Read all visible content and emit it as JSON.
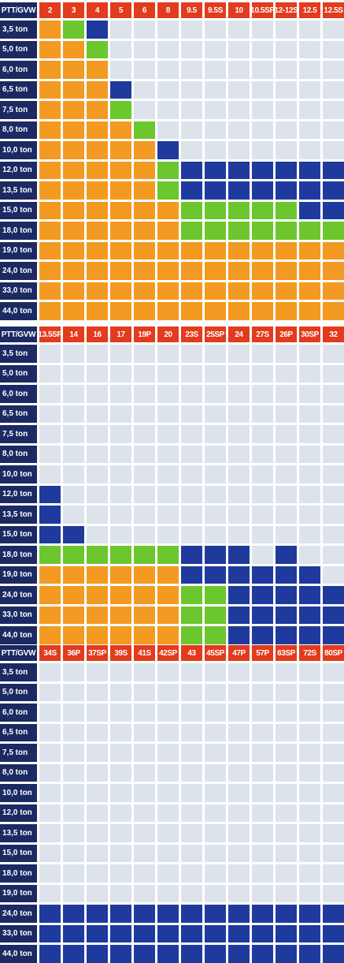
{
  "corner_label": "PTT/GVW",
  "colors": {
    "O": "#f39a22",
    "G": "#6cc62e",
    "B": "#1f3a9d",
    "E": "#dde3ea",
    "row_header_bg": "#1b2a63",
    "col_header_bg": "#e23b1d"
  },
  "rows": [
    "3,5 ton",
    "5,0 ton",
    "6,0 ton",
    "6,5 ton",
    "7,5 ton",
    "8,0 ton",
    "10,0 ton",
    "12,0 ton",
    "13,5 ton",
    "15,0 ton",
    "18,0 ton",
    "19,0 ton",
    "24,0 ton",
    "33,0 ton",
    "44,0 ton"
  ],
  "tables": [
    {
      "columns": [
        "2",
        "3",
        "4",
        "5",
        "6",
        "8",
        "9.5",
        "9.5S",
        "10",
        "10.5SP",
        "12-12S",
        "12.5",
        "12.5S"
      ],
      "cells": [
        [
          "O",
          "G",
          "B",
          "E",
          "E",
          "E",
          "E",
          "E",
          "E",
          "E",
          "E",
          "E",
          "E"
        ],
        [
          "O",
          "O",
          "G",
          "E",
          "E",
          "E",
          "E",
          "E",
          "E",
          "E",
          "E",
          "E",
          "E"
        ],
        [
          "O",
          "O",
          "O",
          "E",
          "E",
          "E",
          "E",
          "E",
          "E",
          "E",
          "E",
          "E",
          "E"
        ],
        [
          "O",
          "O",
          "O",
          "B",
          "E",
          "E",
          "E",
          "E",
          "E",
          "E",
          "E",
          "E",
          "E"
        ],
        [
          "O",
          "O",
          "O",
          "G",
          "E",
          "E",
          "E",
          "E",
          "E",
          "E",
          "E",
          "E",
          "E"
        ],
        [
          "O",
          "O",
          "O",
          "O",
          "G",
          "E",
          "E",
          "E",
          "E",
          "E",
          "E",
          "E",
          "E"
        ],
        [
          "O",
          "O",
          "O",
          "O",
          "O",
          "B",
          "E",
          "E",
          "E",
          "E",
          "E",
          "E",
          "E"
        ],
        [
          "O",
          "O",
          "O",
          "O",
          "O",
          "G",
          "B",
          "B",
          "B",
          "B",
          "B",
          "B",
          "B"
        ],
        [
          "O",
          "O",
          "O",
          "O",
          "O",
          "G",
          "B",
          "B",
          "B",
          "B",
          "B",
          "B",
          "B"
        ],
        [
          "O",
          "O",
          "O",
          "O",
          "O",
          "O",
          "G",
          "G",
          "G",
          "G",
          "G",
          "B",
          "B"
        ],
        [
          "O",
          "O",
          "O",
          "O",
          "O",
          "O",
          "G",
          "G",
          "G",
          "G",
          "G",
          "G",
          "G"
        ],
        [
          "O",
          "O",
          "O",
          "O",
          "O",
          "O",
          "O",
          "O",
          "O",
          "O",
          "O",
          "O",
          "O"
        ],
        [
          "O",
          "O",
          "O",
          "O",
          "O",
          "O",
          "O",
          "O",
          "O",
          "O",
          "O",
          "O",
          "O"
        ],
        [
          "O",
          "O",
          "O",
          "O",
          "O",
          "O",
          "O",
          "O",
          "O",
          "O",
          "O",
          "O",
          "O"
        ],
        [
          "O",
          "O",
          "O",
          "O",
          "O",
          "O",
          "O",
          "O",
          "O",
          "O",
          "O",
          "O",
          "O"
        ]
      ]
    },
    {
      "columns": [
        "13.5SP",
        "14",
        "16",
        "17",
        "19P",
        "20",
        "23S",
        "25SP",
        "24",
        "27S",
        "26P",
        "30SP",
        "32"
      ],
      "cells": [
        [
          "E",
          "E",
          "E",
          "E",
          "E",
          "E",
          "E",
          "E",
          "E",
          "E",
          "E",
          "E",
          "E"
        ],
        [
          "E",
          "E",
          "E",
          "E",
          "E",
          "E",
          "E",
          "E",
          "E",
          "E",
          "E",
          "E",
          "E"
        ],
        [
          "E",
          "E",
          "E",
          "E",
          "E",
          "E",
          "E",
          "E",
          "E",
          "E",
          "E",
          "E",
          "E"
        ],
        [
          "E",
          "E",
          "E",
          "E",
          "E",
          "E",
          "E",
          "E",
          "E",
          "E",
          "E",
          "E",
          "E"
        ],
        [
          "E",
          "E",
          "E",
          "E",
          "E",
          "E",
          "E",
          "E",
          "E",
          "E",
          "E",
          "E",
          "E"
        ],
        [
          "E",
          "E",
          "E",
          "E",
          "E",
          "E",
          "E",
          "E",
          "E",
          "E",
          "E",
          "E",
          "E"
        ],
        [
          "E",
          "E",
          "E",
          "E",
          "E",
          "E",
          "E",
          "E",
          "E",
          "E",
          "E",
          "E",
          "E"
        ],
        [
          "B",
          "E",
          "E",
          "E",
          "E",
          "E",
          "E",
          "E",
          "E",
          "E",
          "E",
          "E",
          "E"
        ],
        [
          "B",
          "E",
          "E",
          "E",
          "E",
          "E",
          "E",
          "E",
          "E",
          "E",
          "E",
          "E",
          "E"
        ],
        [
          "B",
          "B",
          "E",
          "E",
          "E",
          "E",
          "E",
          "E",
          "E",
          "E",
          "E",
          "E",
          "E"
        ],
        [
          "G",
          "G",
          "G",
          "G",
          "G",
          "G",
          "B",
          "B",
          "B",
          "E",
          "B",
          "E",
          "E"
        ],
        [
          "O",
          "O",
          "O",
          "O",
          "O",
          "O",
          "B",
          "B",
          "B",
          "B",
          "B",
          "B",
          "E"
        ],
        [
          "O",
          "O",
          "O",
          "O",
          "O",
          "O",
          "G",
          "G",
          "B",
          "B",
          "B",
          "B",
          "B"
        ],
        [
          "O",
          "O",
          "O",
          "O",
          "O",
          "O",
          "G",
          "G",
          "B",
          "B",
          "B",
          "B",
          "B"
        ],
        [
          "O",
          "O",
          "O",
          "O",
          "O",
          "O",
          "G",
          "G",
          "B",
          "B",
          "B",
          "B",
          "B"
        ]
      ]
    },
    {
      "columns": [
        "34S",
        "36P",
        "37SP",
        "39S",
        "41S",
        "42SP",
        "43",
        "45SP",
        "47P",
        "57P",
        "63SP",
        "72S",
        "80SP"
      ],
      "cells": [
        [
          "E",
          "E",
          "E",
          "E",
          "E",
          "E",
          "E",
          "E",
          "E",
          "E",
          "E",
          "E",
          "E"
        ],
        [
          "E",
          "E",
          "E",
          "E",
          "E",
          "E",
          "E",
          "E",
          "E",
          "E",
          "E",
          "E",
          "E"
        ],
        [
          "E",
          "E",
          "E",
          "E",
          "E",
          "E",
          "E",
          "E",
          "E",
          "E",
          "E",
          "E",
          "E"
        ],
        [
          "E",
          "E",
          "E",
          "E",
          "E",
          "E",
          "E",
          "E",
          "E",
          "E",
          "E",
          "E",
          "E"
        ],
        [
          "E",
          "E",
          "E",
          "E",
          "E",
          "E",
          "E",
          "E",
          "E",
          "E",
          "E",
          "E",
          "E"
        ],
        [
          "E",
          "E",
          "E",
          "E",
          "E",
          "E",
          "E",
          "E",
          "E",
          "E",
          "E",
          "E",
          "E"
        ],
        [
          "E",
          "E",
          "E",
          "E",
          "E",
          "E",
          "E",
          "E",
          "E",
          "E",
          "E",
          "E",
          "E"
        ],
        [
          "E",
          "E",
          "E",
          "E",
          "E",
          "E",
          "E",
          "E",
          "E",
          "E",
          "E",
          "E",
          "E"
        ],
        [
          "E",
          "E",
          "E",
          "E",
          "E",
          "E",
          "E",
          "E",
          "E",
          "E",
          "E",
          "E",
          "E"
        ],
        [
          "E",
          "E",
          "E",
          "E",
          "E",
          "E",
          "E",
          "E",
          "E",
          "E",
          "E",
          "E",
          "E"
        ],
        [
          "E",
          "E",
          "E",
          "E",
          "E",
          "E",
          "E",
          "E",
          "E",
          "E",
          "E",
          "E",
          "E"
        ],
        [
          "E",
          "E",
          "E",
          "E",
          "E",
          "E",
          "E",
          "E",
          "E",
          "E",
          "E",
          "E",
          "E"
        ],
        [
          "B",
          "B",
          "B",
          "B",
          "B",
          "B",
          "B",
          "B",
          "B",
          "B",
          "B",
          "B",
          "B"
        ],
        [
          "B",
          "B",
          "B",
          "B",
          "B",
          "B",
          "B",
          "B",
          "B",
          "B",
          "B",
          "B",
          "B"
        ],
        [
          "B",
          "B",
          "B",
          "B",
          "B",
          "B",
          "B",
          "B",
          "B",
          "B",
          "B",
          "B",
          "B"
        ]
      ]
    }
  ]
}
